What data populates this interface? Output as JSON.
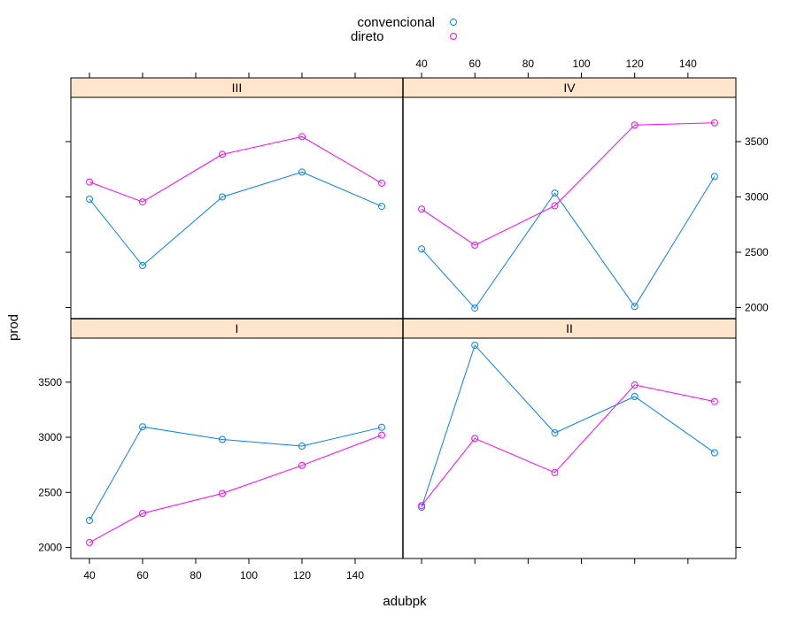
{
  "chart_data": {
    "type": "line",
    "xlabel": "adubpk",
    "ylabel": "prod",
    "x": [
      40,
      60,
      90,
      120,
      150
    ],
    "x_ticks": [
      40,
      60,
      80,
      100,
      120,
      140
    ],
    "y_ticks": [
      2000,
      2500,
      3000,
      3500
    ],
    "xlim": [
      33,
      158
    ],
    "ylim": [
      1900,
      3900
    ],
    "layout": "2x2 trellis (lattice)",
    "legend_position": "top",
    "series_styles": [
      {
        "name": "convencional",
        "color": "#0080ff"
      },
      {
        "name": "direto",
        "color": "#ff00ff"
      }
    ],
    "panels": [
      {
        "strip": "III",
        "series": [
          {
            "name": "convencional",
            "values": [
              2980,
              2380,
              3000,
              3225,
              2915
            ]
          },
          {
            "name": "direto",
            "values": [
              3135,
              2955,
              3385,
              3545,
              3125
            ]
          }
        ]
      },
      {
        "strip": "IV",
        "series": [
          {
            "name": "convencional",
            "values": [
              2530,
              1995,
              3035,
              2010,
              3185
            ]
          },
          {
            "name": "direto",
            "values": [
              2890,
              2565,
              2920,
              3650,
              3670
            ]
          }
        ]
      },
      {
        "strip": "I",
        "series": [
          {
            "name": "convencional",
            "values": [
              2245,
              3095,
              2980,
              2920,
              3090
            ]
          },
          {
            "name": "direto",
            "values": [
              2045,
              2310,
              2490,
              2745,
              3020
            ]
          }
        ]
      },
      {
        "strip": "II",
        "series": [
          {
            "name": "convencional",
            "values": [
              2365,
              3835,
              3040,
              3370,
              2860
            ]
          },
          {
            "name": "direto",
            "values": [
              2380,
              2990,
              2680,
              3475,
              3325
            ]
          }
        ]
      }
    ]
  }
}
